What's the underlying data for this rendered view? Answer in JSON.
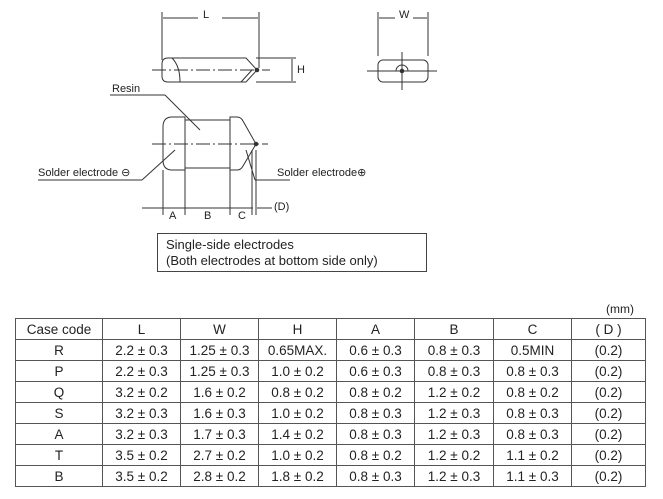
{
  "drawing": {
    "dim_L": "L",
    "dim_W": "W",
    "dim_H": "H",
    "resin": "Resin",
    "solder_neg": "Solder electrode",
    "solder_pos": "Solder electrode",
    "neg_symbol": "⊖",
    "pos_symbol": "⊕",
    "dim_A": "A",
    "dim_B": "B",
    "dim_C": "C",
    "dim_D": "(D)",
    "note_line1": "Single-side electrodes",
    "note_line2": "(Both electrodes at bottom side only)"
  },
  "table": {
    "unit": "(mm)",
    "headers": [
      "Case code",
      "L",
      "W",
      "H",
      "A",
      "B",
      "C",
      "( D )"
    ],
    "rows": [
      [
        "R",
        "2.2 ± 0.3",
        "1.25 ± 0.3",
        "0.65MAX.",
        "0.6 ± 0.3",
        "0.8 ± 0.3",
        "0.5MIN",
        "(0.2)"
      ],
      [
        "P",
        "2.2 ± 0.3",
        "1.25 ± 0.3",
        "1.0 ± 0.2",
        "0.6 ± 0.3",
        "0.8 ± 0.3",
        "0.8 ± 0.3",
        "(0.2)"
      ],
      [
        "Q",
        "3.2 ± 0.2",
        "1.6 ± 0.2",
        "0.8 ± 0.2",
        "0.8 ± 0.2",
        "1.2 ± 0.2",
        "0.8 ± 0.2",
        "(0.2)"
      ],
      [
        "S",
        "3.2 ± 0.3",
        "1.6 ± 0.3",
        "1.0 ± 0.2",
        "0.8 ± 0.3",
        "1.2 ± 0.3",
        "0.8 ± 0.3",
        "(0.2)"
      ],
      [
        "A",
        "3.2 ± 0.3",
        "1.7 ± 0.3",
        "1.4 ± 0.2",
        "0.8 ± 0.3",
        "1.2 ± 0.3",
        "0.8 ± 0.3",
        "(0.2)"
      ],
      [
        "T",
        "3.5 ± 0.2",
        "2.7 ± 0.2",
        "1.0 ± 0.2",
        "0.8 ± 0.2",
        "1.2 ± 0.2",
        "1.1 ± 0.2",
        "(0.2)"
      ],
      [
        "B",
        "3.5 ± 0.2",
        "2.8 ± 0.2",
        "1.8 ± 0.2",
        "0.8 ± 0.3",
        "1.2 ± 0.3",
        "1.1 ± 0.3",
        "(0.2)"
      ]
    ]
  }
}
